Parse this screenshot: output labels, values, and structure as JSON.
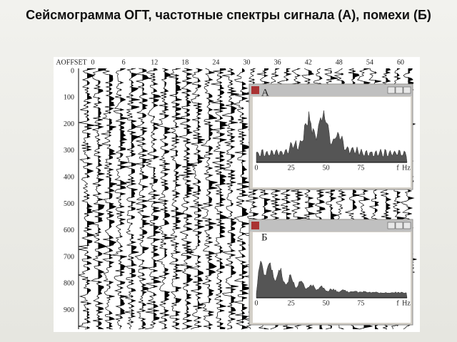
{
  "title": "Сейсмограмма ОГТ, частотные спектры сигнала (А), помехи (Б)",
  "seismogram": {
    "offset_label": "AOFFSET",
    "offsets": [
      "0",
      "6",
      "12",
      "18",
      "24",
      "30",
      "36",
      "42",
      "48",
      "54",
      "60"
    ],
    "times": [
      "0",
      "100",
      "200",
      "300",
      "400",
      "500",
      "600",
      "700",
      "800",
      "900"
    ]
  },
  "panels": [
    {
      "label": "А",
      "ticks": [
        "0",
        "25",
        "50",
        "75"
      ],
      "f": "f",
      "unit": "Hz"
    },
    {
      "label": "Б",
      "ticks": [
        "0",
        "25",
        "50",
        "75"
      ],
      "f": "f",
      "unit": "Hz"
    }
  ]
}
